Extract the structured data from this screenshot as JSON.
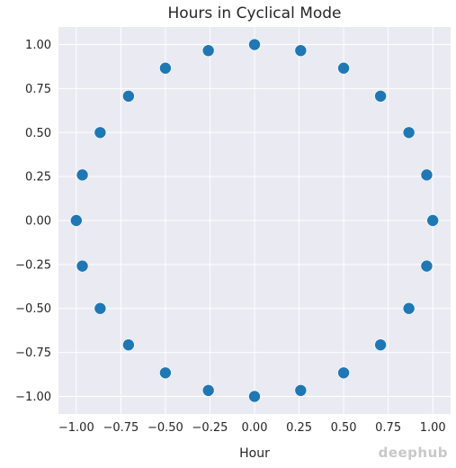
{
  "chart_data": {
    "type": "scatter",
    "title": "Hours in Cyclical Mode",
    "xlabel": "Hour",
    "ylabel": "",
    "xlim": [
      -1.1,
      1.1
    ],
    "ylim": [
      -1.1,
      1.1
    ],
    "xticks": [
      -1.0,
      -0.75,
      -0.5,
      -0.25,
      0.0,
      0.25,
      0.5,
      0.75,
      1.0
    ],
    "xtick_labels": [
      "−1.00",
      "−0.75",
      "−0.50",
      "−0.25",
      "0.00",
      "0.25",
      "0.50",
      "0.75",
      "1.00"
    ],
    "yticks": [
      1.0,
      0.75,
      0.5,
      0.25,
      0.0,
      -0.25,
      -0.5,
      -0.75,
      -1.0
    ],
    "ytick_labels": [
      "1.00",
      "0.75",
      "0.50",
      "0.25",
      "0.00",
      "−0.25",
      "−0.50",
      "−0.75",
      "−1.00"
    ],
    "grid": true,
    "x": [
      0.0,
      0.259,
      0.5,
      0.707,
      0.866,
      0.966,
      1.0,
      0.966,
      0.866,
      0.707,
      0.5,
      0.259,
      0.0,
      -0.259,
      -0.5,
      -0.707,
      -0.866,
      -0.966,
      -1.0,
      -0.966,
      -0.866,
      -0.707,
      -0.5,
      -0.259
    ],
    "y": [
      1.0,
      0.966,
      0.866,
      0.707,
      0.5,
      0.259,
      0.0,
      -0.259,
      -0.5,
      -0.707,
      -0.866,
      -0.966,
      -1.0,
      -0.966,
      -0.866,
      -0.707,
      -0.5,
      -0.259,
      0.0,
      0.259,
      0.5,
      0.707,
      0.866,
      0.966
    ]
  },
  "colors": {
    "plot_background": "#eaeaf2",
    "grid": "#ffffff",
    "marker": "#1f77b4",
    "text": "#262626"
  },
  "watermark": {
    "text": "deephub"
  }
}
